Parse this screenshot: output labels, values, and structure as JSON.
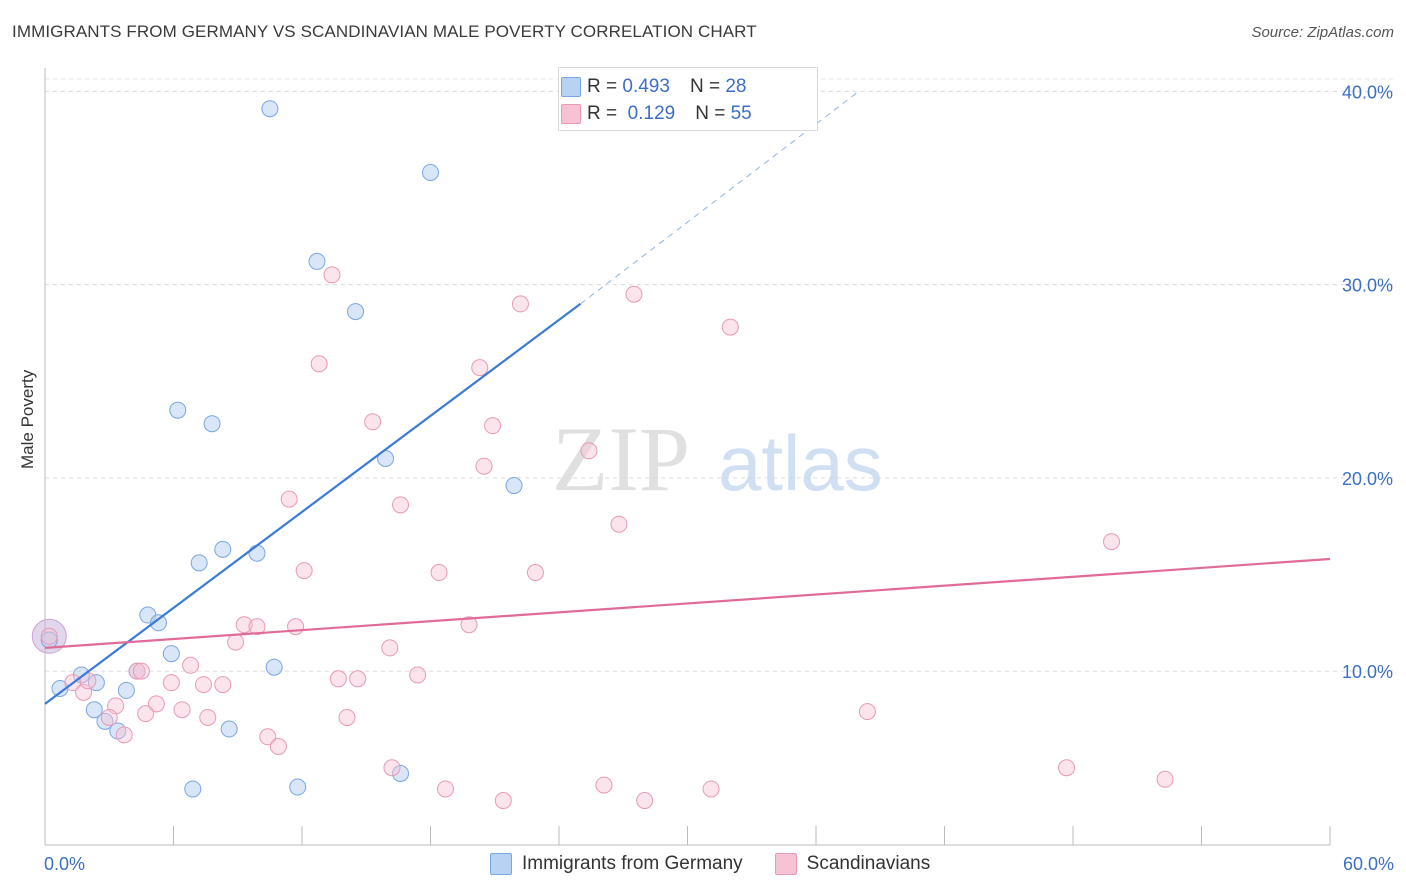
{
  "title": "IMMIGRANTS FROM GERMANY VS SCANDINAVIAN MALE POVERTY CORRELATION CHART",
  "source": "Source: ZipAtlas.com",
  "colors": {
    "blue": "#3a7bd5",
    "blue_fill": "#b8d2f3",
    "pink": "#e06b98",
    "pink_fill": "#f7c3d4",
    "tick_text": "#3c6fc4"
  },
  "legend": {
    "row1": {
      "r_label": "R =",
      "r_value": "0.493",
      "n_label": "N =",
      "n_value": "28"
    },
    "row2": {
      "r_label": "R =",
      "r_value": "0.129",
      "n_label": "N =",
      "n_value": "55"
    }
  },
  "bottom_legend": {
    "series1": "Immigrants from Germany",
    "series2": "Scandinavians"
  },
  "chart_data": {
    "type": "scatter",
    "xlabel": "",
    "ylabel": "Male Poverty",
    "xlim": [
      0,
      60
    ],
    "ylim": [
      1,
      41
    ],
    "x_ticks": [
      "0.0%",
      "60.0%"
    ],
    "y_ticks": [
      {
        "value": 10,
        "label": "10.0%"
      },
      {
        "value": 20,
        "label": "20.0%"
      },
      {
        "value": 30,
        "label": "30.0%"
      },
      {
        "value": 40,
        "label": "40.0%"
      }
    ],
    "watermark": "ZIPatlas",
    "series": [
      {
        "name": "Immigrants from Germany",
        "trend": {
          "x0": 0,
          "y0": 8.3,
          "x1": 25,
          "y1": 29.0,
          "dash_to_x": 38,
          "dash_to_y": 40
        },
        "points": [
          [
            10.5,
            39.1
          ],
          [
            18.0,
            35.8
          ],
          [
            12.7,
            31.2
          ],
          [
            14.5,
            28.6
          ],
          [
            6.2,
            23.5
          ],
          [
            7.8,
            22.8
          ],
          [
            15.9,
            21.0
          ],
          [
            21.9,
            19.6
          ],
          [
            8.3,
            16.3
          ],
          [
            9.9,
            16.1
          ],
          [
            7.2,
            15.6
          ],
          [
            4.8,
            12.9
          ],
          [
            5.3,
            12.5
          ],
          [
            5.9,
            10.9
          ],
          [
            10.7,
            10.2
          ],
          [
            1.7,
            9.8
          ],
          [
            2.4,
            9.4
          ],
          [
            0.7,
            9.1
          ],
          [
            3.8,
            9.0
          ],
          [
            4.3,
            10.0
          ],
          [
            2.3,
            8.0
          ],
          [
            2.8,
            7.4
          ],
          [
            3.4,
            6.9
          ],
          [
            8.6,
            7.0
          ],
          [
            6.9,
            3.9
          ],
          [
            11.8,
            4.0
          ],
          [
            16.6,
            4.7
          ],
          [
            0.2,
            11.6
          ]
        ]
      },
      {
        "name": "Scandinavians",
        "trend": {
          "x0": 0,
          "y0": 11.2,
          "x1": 60,
          "y1": 15.8
        },
        "points": [
          [
            13.4,
            30.5
          ],
          [
            27.5,
            29.5
          ],
          [
            22.2,
            29.0
          ],
          [
            32.0,
            27.8
          ],
          [
            12.8,
            25.9
          ],
          [
            20.3,
            25.7
          ],
          [
            15.3,
            22.9
          ],
          [
            20.9,
            22.7
          ],
          [
            20.5,
            20.6
          ],
          [
            25.4,
            21.4
          ],
          [
            11.4,
            18.9
          ],
          [
            16.6,
            18.6
          ],
          [
            26.8,
            17.6
          ],
          [
            49.8,
            16.7
          ],
          [
            12.1,
            15.2
          ],
          [
            18.4,
            15.1
          ],
          [
            22.9,
            15.1
          ],
          [
            9.3,
            12.4
          ],
          [
            9.9,
            12.3
          ],
          [
            11.7,
            12.3
          ],
          [
            19.8,
            12.4
          ],
          [
            8.9,
            11.5
          ],
          [
            16.1,
            11.2
          ],
          [
            6.8,
            10.3
          ],
          [
            4.3,
            10.0
          ],
          [
            17.4,
            9.8
          ],
          [
            13.7,
            9.6
          ],
          [
            14.6,
            9.6
          ],
          [
            5.9,
            9.4
          ],
          [
            7.4,
            9.3
          ],
          [
            8.3,
            9.3
          ],
          [
            1.3,
            9.4
          ],
          [
            1.8,
            8.9
          ],
          [
            3.3,
            8.2
          ],
          [
            5.2,
            8.3
          ],
          [
            6.4,
            8.0
          ],
          [
            4.7,
            7.8
          ],
          [
            7.6,
            7.6
          ],
          [
            14.1,
            7.6
          ],
          [
            38.4,
            7.9
          ],
          [
            3.0,
            7.6
          ],
          [
            3.7,
            6.7
          ],
          [
            10.4,
            6.6
          ],
          [
            10.9,
            6.1
          ],
          [
            16.2,
            5.0
          ],
          [
            18.7,
            3.9
          ],
          [
            26.1,
            4.1
          ],
          [
            31.1,
            3.9
          ],
          [
            47.7,
            5.0
          ],
          [
            52.3,
            4.4
          ],
          [
            21.4,
            3.3
          ],
          [
            28.0,
            3.3
          ],
          [
            0.2,
            11.8
          ],
          [
            2.0,
            9.5
          ],
          [
            4.5,
            10.0
          ]
        ]
      }
    ]
  }
}
